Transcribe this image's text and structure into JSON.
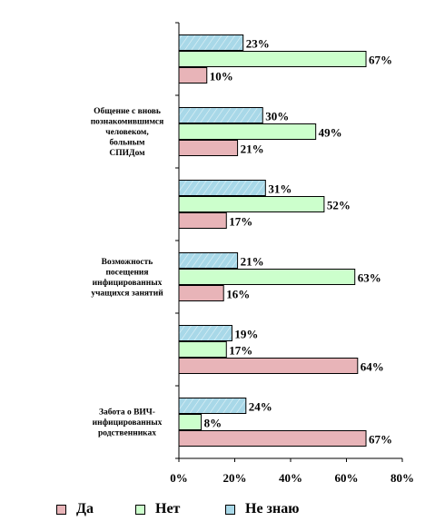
{
  "chart_data": {
    "type": "bar",
    "orientation": "horizontal",
    "categories": [
      "",
      "Общение с вновь познакомившимся человеком, больным СПИДом",
      "",
      "Возможность посещения инфицированных учащихся занятий",
      "",
      "Забота о ВИЧ-инфицированных родственниках"
    ],
    "category_lines": [
      [],
      [
        "Общение с вновь",
        "познакомившимся",
        "человеком,",
        "больным",
        "СПИДом"
      ],
      [],
      [
        "Возможность",
        "посещения",
        "инфицированных",
        "учащихся занятий"
      ],
      [],
      [
        "Забота о ВИЧ-",
        "инфицированных",
        "родственниках"
      ]
    ],
    "series": [
      {
        "name": "Не знаю",
        "color": "#a8d8e8",
        "values": [
          23,
          30,
          31,
          21,
          19,
          24
        ],
        "labels": [
          "23%",
          "30%",
          "31%",
          "21%",
          "19%",
          "24%"
        ]
      },
      {
        "name": "Нет",
        "color": "#ccffcc",
        "values": [
          67,
          49,
          52,
          63,
          17,
          8
        ],
        "labels": [
          "67%",
          "49%",
          "52%",
          "63%",
          "17%",
          "8%"
        ]
      },
      {
        "name": "Да",
        "color": "#e8b4b8",
        "values": [
          10,
          21,
          17,
          16,
          64,
          67
        ],
        "labels": [
          "10%",
          "21%",
          "17%",
          "16%",
          "64%",
          "67%"
        ]
      }
    ],
    "xlim": [
      0,
      80
    ],
    "x_ticks": [
      "0%",
      "20%",
      "40%",
      "60%",
      "80%"
    ],
    "legend_position": "bottom",
    "grid": false
  },
  "legend": [
    {
      "label": "Да",
      "color": "#e8b4b8"
    },
    {
      "label": "Нет",
      "color": "#ccffcc"
    },
    {
      "label": "Не знаю",
      "color": "#a8d8e8"
    }
  ]
}
